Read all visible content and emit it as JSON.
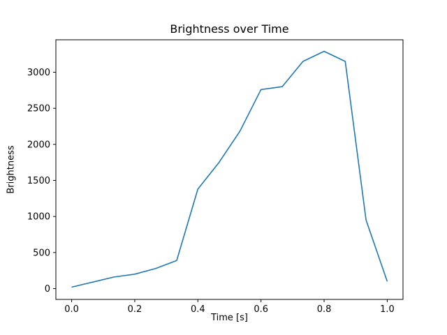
{
  "chart_data": {
    "type": "line",
    "title": "Brightness over Time",
    "xlabel": "Time [s]",
    "ylabel": "Brightness",
    "x": [
      0.0,
      0.067,
      0.133,
      0.2,
      0.267,
      0.333,
      0.4,
      0.467,
      0.533,
      0.6,
      0.667,
      0.733,
      0.8,
      0.867,
      0.933,
      1.0
    ],
    "values": [
      20,
      90,
      160,
      200,
      280,
      390,
      1380,
      1750,
      2180,
      2760,
      2800,
      3150,
      3290,
      3150,
      950,
      100
    ],
    "xlim": [
      -0.05,
      1.05
    ],
    "ylim": [
      -150,
      3450
    ],
    "xticks": [
      0.0,
      0.2,
      0.4,
      0.6,
      0.8,
      1.0
    ],
    "xtick_labels": [
      "0.0",
      "0.2",
      "0.4",
      "0.6",
      "0.8",
      "1.0"
    ],
    "yticks": [
      0,
      500,
      1000,
      1500,
      2000,
      2500,
      3000
    ],
    "ytick_labels": [
      "0",
      "500",
      "1000",
      "1500",
      "2000",
      "2500",
      "3000"
    ],
    "line_color": "#1f77b4",
    "grid": "off",
    "legend": "none"
  }
}
